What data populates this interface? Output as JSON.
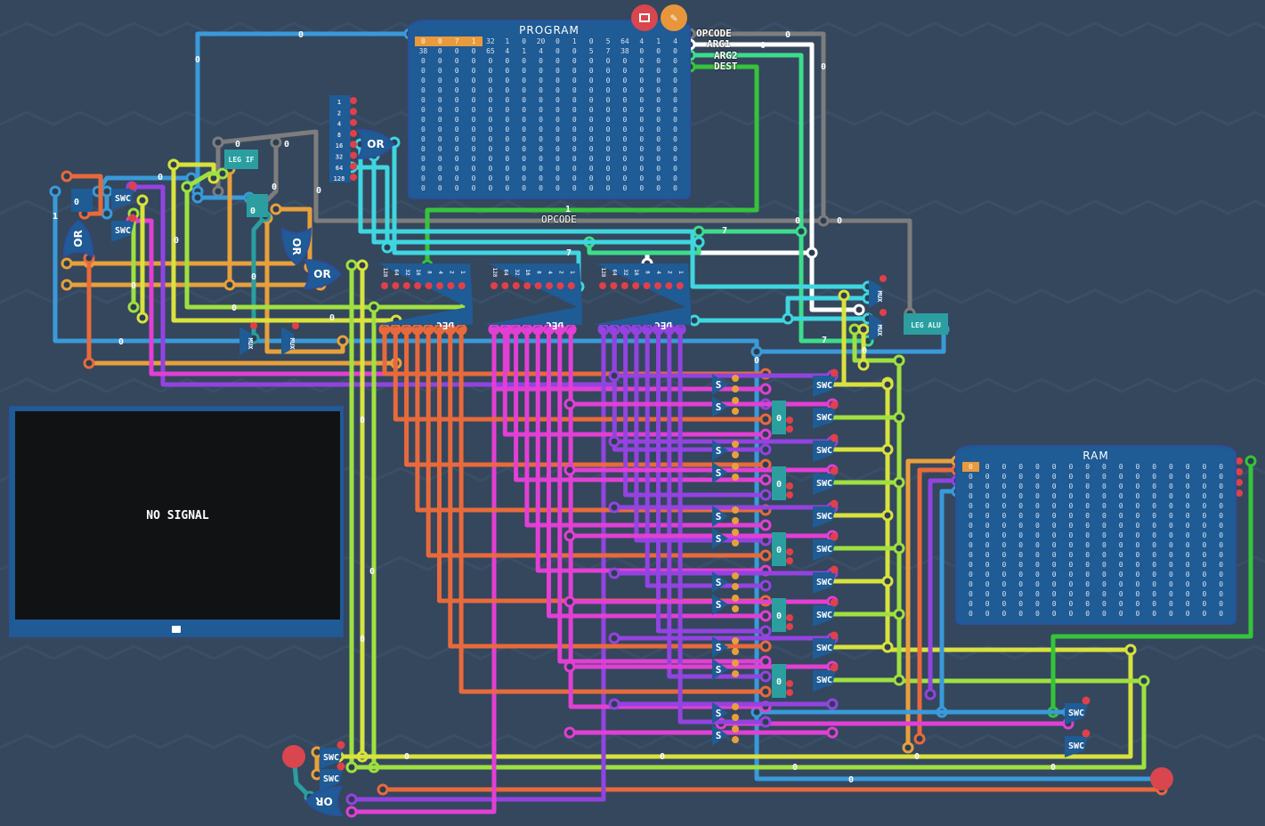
{
  "program": {
    "title": "PROGRAM",
    "rows": [
      [
        "0",
        "0",
        "7",
        "1",
        "32",
        "1",
        "0",
        "20",
        "0",
        "1",
        "0",
        "5",
        "64",
        "4",
        "1",
        "4"
      ],
      [
        "38",
        "0",
        "0",
        "0",
        "65",
        "4",
        "1",
        "4",
        "0",
        "0",
        "5",
        "7",
        "38",
        "0",
        "0",
        "0"
      ],
      [
        "0",
        "0",
        "0",
        "0",
        "0",
        "0",
        "0",
        "0",
        "0",
        "0",
        "0",
        "0",
        "0",
        "0",
        "0",
        "0"
      ],
      [
        "0",
        "0",
        "0",
        "0",
        "0",
        "0",
        "0",
        "0",
        "0",
        "0",
        "0",
        "0",
        "0",
        "0",
        "0",
        "0"
      ],
      [
        "0",
        "0",
        "0",
        "0",
        "0",
        "0",
        "0",
        "0",
        "0",
        "0",
        "0",
        "0",
        "0",
        "0",
        "0",
        "0"
      ],
      [
        "0",
        "0",
        "0",
        "0",
        "0",
        "0",
        "0",
        "0",
        "0",
        "0",
        "0",
        "0",
        "0",
        "0",
        "0",
        "0"
      ],
      [
        "0",
        "0",
        "0",
        "0",
        "0",
        "0",
        "0",
        "0",
        "0",
        "0",
        "0",
        "0",
        "0",
        "0",
        "0",
        "0"
      ],
      [
        "0",
        "0",
        "0",
        "0",
        "0",
        "0",
        "0",
        "0",
        "0",
        "0",
        "0",
        "0",
        "0",
        "0",
        "0",
        "0"
      ],
      [
        "0",
        "0",
        "0",
        "0",
        "0",
        "0",
        "0",
        "0",
        "0",
        "0",
        "0",
        "0",
        "0",
        "0",
        "0",
        "0"
      ],
      [
        "0",
        "0",
        "0",
        "0",
        "0",
        "0",
        "0",
        "0",
        "0",
        "0",
        "0",
        "0",
        "0",
        "0",
        "0",
        "0"
      ],
      [
        "0",
        "0",
        "0",
        "0",
        "0",
        "0",
        "0",
        "0",
        "0",
        "0",
        "0",
        "0",
        "0",
        "0",
        "0",
        "0"
      ],
      [
        "0",
        "0",
        "0",
        "0",
        "0",
        "0",
        "0",
        "0",
        "0",
        "0",
        "0",
        "0",
        "0",
        "0",
        "0",
        "0"
      ],
      [
        "0",
        "0",
        "0",
        "0",
        "0",
        "0",
        "0",
        "0",
        "0",
        "0",
        "0",
        "0",
        "0",
        "0",
        "0",
        "0"
      ],
      [
        "0",
        "0",
        "0",
        "0",
        "0",
        "0",
        "0",
        "0",
        "0",
        "0",
        "0",
        "0",
        "0",
        "0",
        "0",
        "0"
      ],
      [
        "0",
        "0",
        "0",
        "0",
        "0",
        "0",
        "0",
        "0",
        "0",
        "0",
        "0",
        "0",
        "0",
        "0",
        "0",
        "0"
      ],
      [
        "0",
        "0",
        "0",
        "0",
        "0",
        "0",
        "0",
        "0",
        "0",
        "0",
        "0",
        "0",
        "0",
        "0",
        "0",
        "0"
      ]
    ],
    "highlighted_cells": 4,
    "outputs": [
      "OPCODE",
      "ARG1",
      "ARG2",
      "DEST"
    ],
    "edit_icon": "pencil-icon",
    "memory_icon": "memory-icon"
  },
  "ram": {
    "title": "RAM",
    "cols": 16,
    "rows": 16,
    "value": "0"
  },
  "monitor": {
    "status": "NO SIGNAL",
    "icon": "monitor-icon"
  },
  "components": {
    "leg_if": "LEG IF",
    "leg_alu": "LEG ALU",
    "or": "OR",
    "swc": "SWC",
    "s": "S",
    "mux": "MUX",
    "dec": "DEC",
    "bits": [
      "1",
      "2",
      "4",
      "8",
      "16",
      "32",
      "64",
      "128"
    ],
    "opcode_label": "OPCODE",
    "register_value": "0"
  },
  "wire_values": [
    "0",
    "0",
    "0",
    "0",
    "0",
    "0",
    "0",
    "0",
    "0",
    "1",
    "7",
    "7",
    "7",
    "0",
    "0",
    "0",
    "1",
    "0",
    "0",
    "0",
    "0",
    "0",
    "0",
    "0",
    "0",
    "0",
    "0",
    "0",
    "0",
    "0",
    "0",
    "0",
    "0",
    "0"
  ],
  "colors": {
    "background": "#34475d",
    "panel": "#1f5b94",
    "blue": "#3a9ad9",
    "gray": "#7d7d7d",
    "white": "#ffffff",
    "arg2": "#3ddc8c",
    "dest": "#36c43a",
    "lime": "#9fe040",
    "yellow": "#d9e23e",
    "orange": "#e8a03c",
    "redorange": "#e86a3c",
    "magenta": "#e23fd4",
    "purple": "#9343e0",
    "cyan": "#3fd6e0",
    "teal": "#2c9ea0",
    "pin": "#e0404a"
  }
}
